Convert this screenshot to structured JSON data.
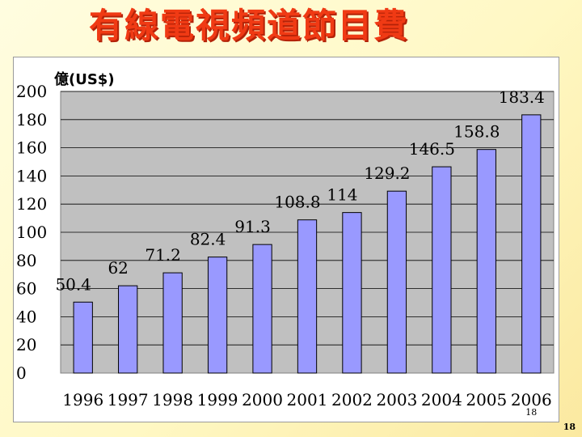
{
  "slide": {
    "title": "有線電視頻道節目費",
    "page_number": "18",
    "corner_number": "18"
  },
  "chart_data": {
    "type": "bar",
    "categories": [
      "1996",
      "1997",
      "1998",
      "1999",
      "2000",
      "2001",
      "2002",
      "2003",
      "2004",
      "2005",
      "2006"
    ],
    "values": [
      50.4,
      62,
      71.2,
      82.4,
      91.3,
      108.8,
      114,
      129.2,
      146.5,
      158.8,
      183.4
    ],
    "data_labels": [
      "50.4",
      "62",
      "71.2",
      "82.4",
      "91.3",
      "108.8",
      "114",
      "129.2",
      "146.5",
      "158.8",
      "183.4"
    ],
    "unit_label": "億(US$)",
    "ylim": [
      0,
      200
    ],
    "yticks": [
      "0",
      "20",
      "40",
      "60",
      "80",
      "100",
      "120",
      "140",
      "160",
      "180",
      "200"
    ],
    "grid": true,
    "colors": {
      "bar_fill": "#9999ff",
      "bar_stroke": "#000000",
      "plot_bg": "#c0c0c0",
      "title": "#f03a14"
    }
  }
}
